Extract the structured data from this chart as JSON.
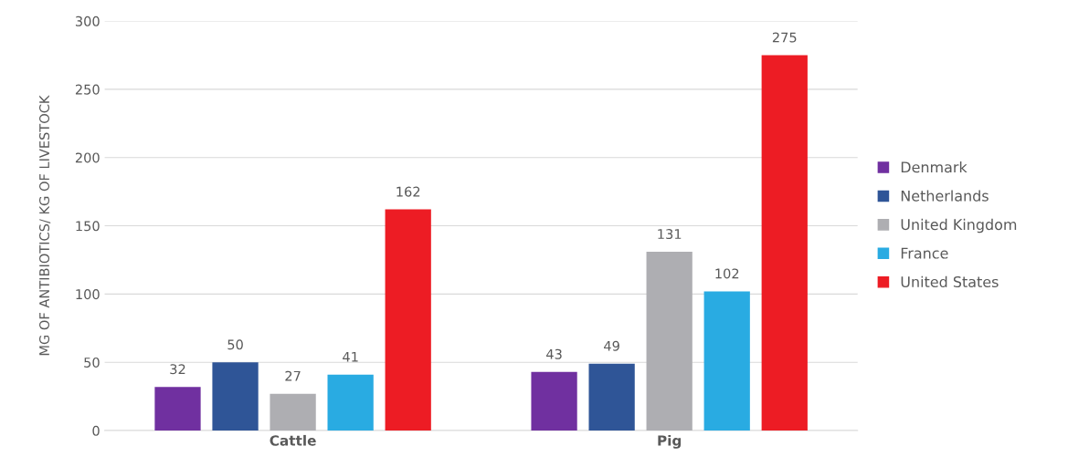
{
  "chart_data": {
    "type": "bar",
    "ylabel": "MG OF ANTIBIOTICS/ KG OF LIVESTOCK",
    "categories": [
      "Cattle",
      "Pig"
    ],
    "series": [
      {
        "name": "Denmark",
        "color": "#7030a0",
        "values": [
          32,
          43
        ]
      },
      {
        "name": "Netherlands",
        "color": "#2f5597",
        "values": [
          50,
          49
        ]
      },
      {
        "name": "United Kingdom",
        "color": "#aeaeb2",
        "values": [
          27,
          131
        ]
      },
      {
        "name": "France",
        "color": "#29abe2",
        "values": [
          41,
          102
        ]
      },
      {
        "name": "United States",
        "color": "#ed1c24",
        "values": [
          162,
          275
        ]
      }
    ],
    "ylim": [
      0,
      300
    ],
    "yticks": [
      0,
      50,
      100,
      150,
      200,
      250,
      300
    ],
    "grid": "y",
    "legend": "right",
    "data_labels": true
  }
}
